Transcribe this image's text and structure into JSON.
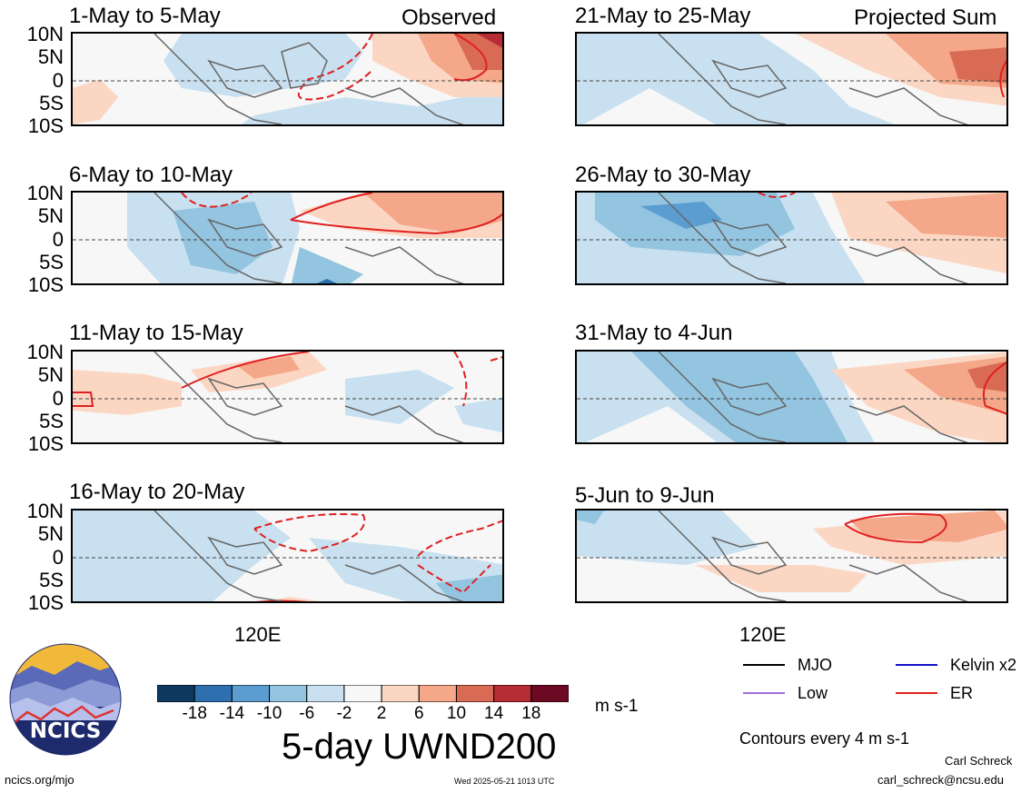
{
  "panels_left": [
    {
      "title": "1-May to 5-May",
      "tag": "Observed"
    },
    {
      "title": "6-May to 10-May",
      "tag": ""
    },
    {
      "title": "11-May to 15-May",
      "tag": ""
    },
    {
      "title": "16-May to 20-May",
      "tag": ""
    }
  ],
  "panels_right": [
    {
      "title": "21-May to 25-May",
      "tag": "Projected Sum"
    },
    {
      "title": "26-May to 30-May",
      "tag": ""
    },
    {
      "title": "31-May to 4-Jun",
      "tag": ""
    },
    {
      "title": "5-Jun to 9-Jun",
      "tag": ""
    }
  ],
  "lat_labels": [
    "10N",
    "5N",
    "0",
    "5S",
    "10S"
  ],
  "lon_label": "120E",
  "colorbar": {
    "colors": [
      "#0d3860",
      "#2e6fb0",
      "#5b9dd0",
      "#93c4e0",
      "#c8e0ef",
      "#f7f7f7",
      "#fbd7c3",
      "#f4a789",
      "#d96b55",
      "#b72c35",
      "#6b0a22"
    ],
    "labels": [
      "-18",
      "-14",
      "-10",
      "-6",
      "-2",
      "2",
      "6",
      "10",
      "14",
      "18"
    ],
    "units": "m s-1"
  },
  "main_title": "5-day UWND200",
  "legend": {
    "items": [
      {
        "label": "MJO",
        "color": "#000000"
      },
      {
        "label": "Kelvin x2",
        "color": "#1010c8"
      },
      {
        "label": "Low",
        "color": "#a070d8"
      },
      {
        "label": "ER",
        "color": "#e02020"
      }
    ],
    "note": "Contours every 4 m s-1"
  },
  "logo": {
    "text": "NCICS"
  },
  "footer": {
    "site": "ncics.org/mjo",
    "timestamp": "Wed 2025-05-21 1013 UTC",
    "author": "Carl Schreck",
    "email": "carl_schreck@ncsu.edu"
  }
}
